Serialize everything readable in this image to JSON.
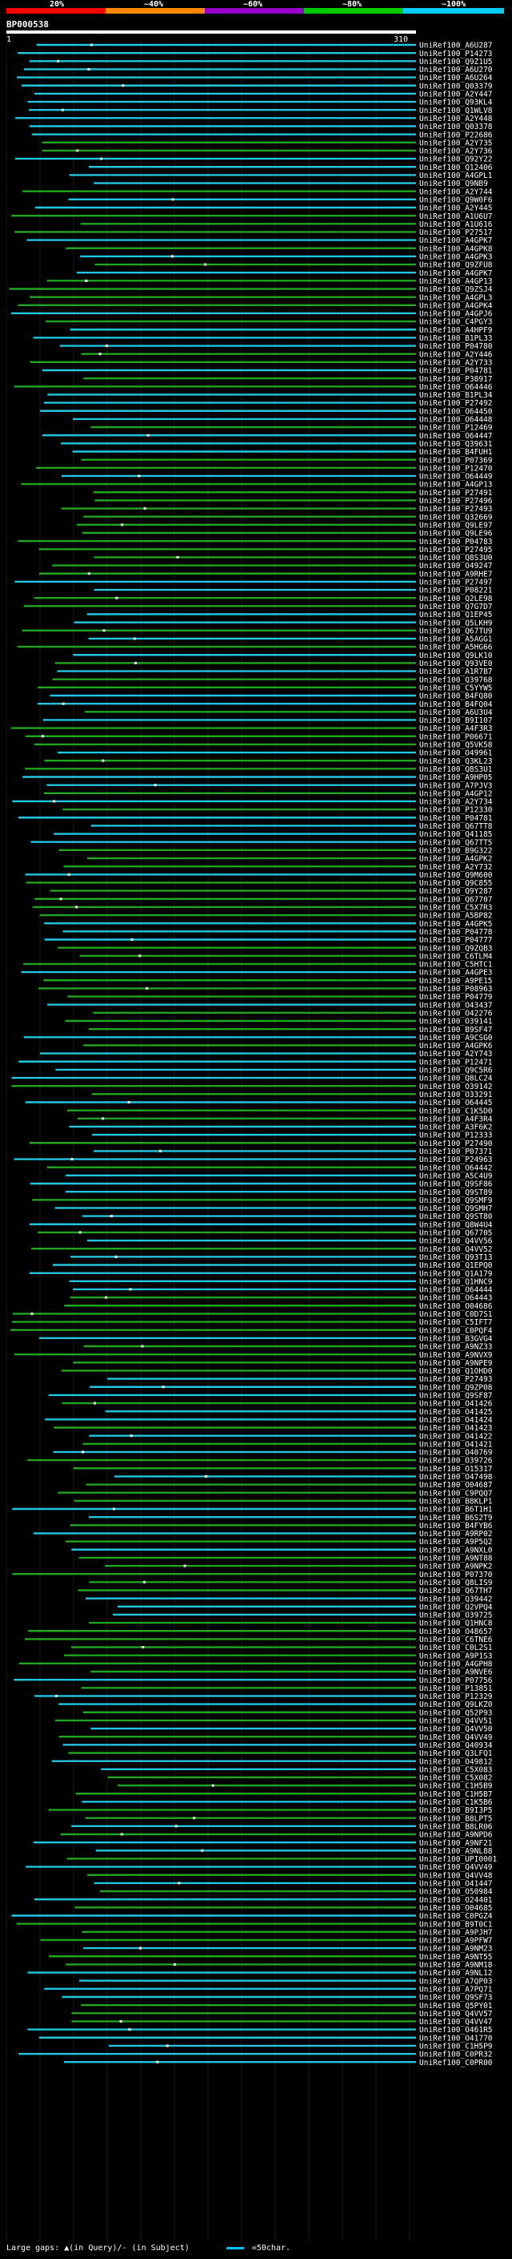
{
  "scale": {
    "labels": [
      "20%",
      "~40%",
      "~60%",
      "~80%",
      "~100%"
    ],
    "colors": [
      "#ff0000",
      "#ff8800",
      "#9900cc",
      "#00cc00",
      "#00ccff"
    ]
  },
  "query": {
    "id": "BP000538",
    "start": "1",
    "end": "310"
  },
  "series_colors": {
    "cyan": "#22c6e0",
    "green": "#22a520"
  },
  "hits": [
    "UniRef100_A6U287",
    "UniRef100_P14273",
    "UniRef100_Q9Z1U5",
    "UniRef100_A6U270",
    "UniRef100_A6U264",
    "UniRef100_Q03379",
    "UniRef100_A2Y447",
    "UniRef100_Q93KL4",
    "UniRef100_Q1WLV8",
    "UniRef100_A2Y448",
    "UniRef100_Q03378",
    "UniRef100_P22686",
    "UniRef100_A2Y735",
    "UniRef100_A2Y736",
    "UniRef100_Q92Y22",
    "UniRef100_Q12406",
    "UniRef100_A4GPL1",
    "UniRef100_Q9NB9",
    "UniRef100_A2Y744",
    "UniRef100_Q9W0F6",
    "UniRef100_A2Y445",
    "UniRef100_A1U6U7",
    "UniRef100_A1U616",
    "UniRef100_P27517",
    "UniRef100_A4GPK7",
    "UniRef100_A4GPK8",
    "UniRef100_A4GPK3",
    "UniRef100_Q9ZFU8",
    "UniRef100_A4GPK7",
    "UniRef100_A4GP13",
    "UniRef100_Q9ZSJ4",
    "UniRef100_A4GPL3",
    "UniRef100_A4GPK4",
    "UniRef100_A4GPJ6",
    "UniRef100_C4PGY3",
    "UniRef100_A4HPF9",
    "UniRef100_B1PL33",
    "UniRef100_P04780",
    "UniRef100_A2Y446",
    "UniRef100_A2Y733",
    "UniRef100_P04781",
    "UniRef100_P38917",
    "UniRef100_O64446",
    "UniRef100_B1PL34",
    "UniRef100_P27492",
    "UniRef100_O64450",
    "UniRef100_O64448",
    "UniRef100_P12469",
    "UniRef100_O64447",
    "UniRef100_Q39631",
    "UniRef100_B4FUH1",
    "UniRef100_P07369",
    "UniRef100_P12470",
    "UniRef100_O64449",
    "UniRef100_A4GP13",
    "UniRef100_P27491",
    "UniRef100_P27496",
    "UniRef100_P27493",
    "UniRef100_Q32669",
    "UniRef100_Q9LE97",
    "UniRef100_Q9LE96",
    "UniRef100_P04783",
    "UniRef100_P27495",
    "UniRef100_Q8S3U0",
    "UniRef100_O49247",
    "UniRef100_A9RHE7",
    "UniRef100_P27497",
    "UniRef100_P08221",
    "UniRef100_Q2LE98",
    "UniRef100_Q7G7D7",
    "UniRef100_Q1EP45",
    "UniRef100_Q5LKH9",
    "UniRef100_Q67TU9",
    "UniRef100_A5AGG1",
    "UniRef100_A5HG66",
    "UniRef100_Q9LK10",
    "UniRef100_Q93VE0",
    "UniRef100_A1R7B7",
    "UniRef100_Q39768",
    "UniRef100_C5YYW5",
    "UniRef100_B4FQ80",
    "UniRef100_B4FQ04",
    "UniRef100_A6U3U4",
    "UniRef100_B9I107",
    "UniRef100_A4F3R3",
    "UniRef100_P06671",
    "UniRef100_Q5VK58",
    "UniRef100_O49961",
    "UniRef100_Q3KL23",
    "UniRef100_Q8S3U1",
    "UniRef100_A9HP05",
    "UniRef100_A7PJV3",
    "UniRef100_A4GP12",
    "UniRef100_A2Y734",
    "UniRef100_P12330",
    "UniRef100_P04781",
    "UniRef100_Q67TT8",
    "UniRef100_Q41185",
    "UniRef100_Q67TT5",
    "UniRef100_B9G322",
    "UniRef100_A4GPK2",
    "UniRef100_A2Y732",
    "UniRef100_Q9M600",
    "UniRef100_Q9C855",
    "UniRef100_Q9Y287",
    "UniRef100_Q67707",
    "UniRef100_C5X7R3",
    "UniRef100_A5BP82",
    "UniRef100_A4GPK5",
    "UniRef100_P04778",
    "UniRef100_P04777",
    "UniRef100_Q9ZQB3",
    "UniRef100_C6TLM4",
    "UniRef100_C5HTC1",
    "UniRef100_A4GPE3",
    "UniRef100_A9PE15",
    "UniRef100_P08963",
    "UniRef100_P04779",
    "UniRef100_O43437",
    "UniRef100_O42276",
    "UniRef100_O39141",
    "UniRef100_B9SF47",
    "UniRef100_A9CSG0",
    "UniRef100_A4GPK6",
    "UniRef100_A2Y743",
    "UniRef100_P12471",
    "UniRef100_Q9C5R6",
    "UniRef100_Q8LC24",
    "UniRef100_O39142",
    "UniRef100_O33291",
    "UniRef100_O64445",
    "UniRef100_C1K5D0",
    "UniRef100_A4F3R4",
    "UniRef100_A3F6K2",
    "UniRef100_P12333",
    "UniRef100_P27490",
    "UniRef100_P07371",
    "UniRef100_P24963",
    "UniRef100_O64442",
    "UniRef100_A5C4U9",
    "UniRef100_Q9SF86",
    "UniRef100_Q9ST89",
    "UniRef100_Q9SMF9",
    "UniRef100_Q9SMH7",
    "UniRef100_Q9ST80",
    "UniRef100_Q8W4U4",
    "UniRef100_Q67705",
    "UniRef100_Q4VV56",
    "UniRef100_Q4VV52",
    "UniRef100_Q93T13",
    "UniRef100_Q1EPQ0",
    "UniRef100_Q1A179",
    "UniRef100_Q1HNC9",
    "UniRef100_O64444",
    "UniRef100_O64443",
    "UniRef100_O04686",
    "UniRef100_C0D7S1",
    "UniRef100_C5IFT7",
    "UniRef100_C0PQF4",
    "UniRef100_B3GVG4",
    "UniRef100_A9NZ33",
    "UniRef100_A9NVX9",
    "UniRef100_A9NPE9",
    "UniRef100_Q1OHD0",
    "UniRef100_P27493",
    "UniRef100_Q9ZP08",
    "UniRef100_Q9SF87",
    "UniRef100_O41426",
    "UniRef100_O41425",
    "UniRef100_O41424",
    "UniRef100_O41423",
    "UniRef100_O41422",
    "UniRef100_O41421",
    "UniRef100_O40769",
    "UniRef100_O39726",
    "UniRef100_O15317",
    "UniRef100_O47498",
    "UniRef100_O04687",
    "UniRef100_C9PQQ7",
    "UniRef100_B8KLP1",
    "UniRef100_B6T1H1",
    "UniRef100_B6S2T9",
    "UniRef100_B4FYB6",
    "UniRef100_A9RP02",
    "UniRef100_A9P5Q2",
    "UniRef100_A9NXL0",
    "UniRef100_A9NT88",
    "UniRef100_A9NPK2",
    "UniRef100_P07370",
    "UniRef100_Q8LIS9",
    "UniRef100_Q67TH7",
    "UniRef100_Q39442",
    "UniRef100_Q2VPQ4",
    "UniRef100_O39725",
    "UniRef100_Q1HNC8",
    "UniRef100_O48657",
    "UniRef100_C6TNE6",
    "UniRef100_C0L2S1",
    "UniRef100_A9P1S3",
    "UniRef100_A4GPH8",
    "UniRef100_A9NVE6",
    "UniRef100_P07756",
    "UniRef100_P13851",
    "UniRef100_P12329",
    "UniRef100_Q9LKZ0",
    "UniRef100_Q52P93",
    "UniRef100_Q4VV51",
    "UniRef100_Q4VV50",
    "UniRef100_Q4VV49",
    "UniRef100_Q40934",
    "UniRef100_Q3LFQ1",
    "UniRef100_O49812",
    "UniRef100_C5X083",
    "UniRef100_C5X082",
    "UniRef100_C1H5B9",
    "UniRef100_C1H5B7",
    "UniRef100_C1K5B6",
    "UniRef100_B9I3P5",
    "UniRef100_B8LPT5",
    "UniRef100_B8LR06",
    "UniRef100_A9NPD6",
    "UniRef100_A9NF21",
    "UniRef100_A9NL88",
    "UniRef100_UPI0001",
    "UniRef100_Q4VV49",
    "UniRef100_Q4VV48",
    "UniRef100_O41447",
    "UniRef100_O50984",
    "UniRef100_O24401",
    "UniRef100_O04685",
    "UniRef100_C0PGZ4",
    "UniRef100_B9T0C1",
    "UniRef100_A9PJH7",
    "UniRef100_A9PFW7",
    "UniRef100_A9NM23",
    "UniRef100_A9NT55",
    "UniRef100_A9NM18",
    "UniRef100_A9NL12",
    "UniRef100_A7QP03",
    "UniRef100_A7PQ71",
    "UniRef100_Q9SF73",
    "UniRef100_Q5PY01",
    "UniRef100_Q4VV57",
    "UniRef100_Q4VV47",
    "UniRef100_O461R5",
    "UniRef100_O41770",
    "UniRef100_C1H5P9",
    "UniRef100_C0PR32",
    "UniRef100_C0PR00"
  ],
  "footer": {
    "gaps_label": "Large gaps: ▲(in Query)/- (in Subject)",
    "legend_label": "=50char."
  }
}
